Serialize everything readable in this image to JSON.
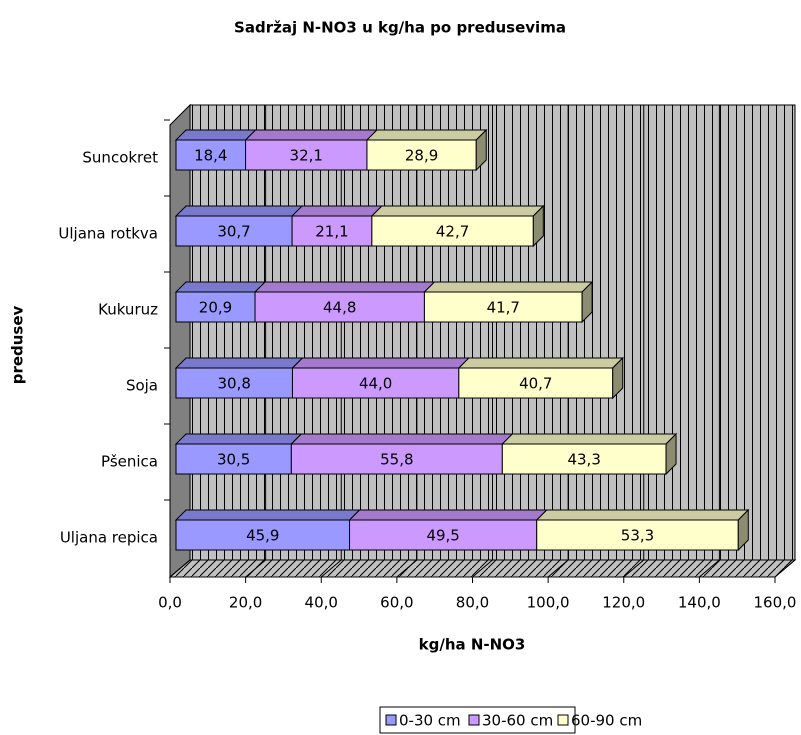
{
  "chart_data": {
    "type": "bar3d_stacked_horizontal",
    "title": "Sadržaj N-NO3 u kg/ha po predusevima",
    "x_label": "kg/ha N-NO3",
    "y_label": "predusev",
    "categories": [
      "Suncokret",
      "Uljana rotkva",
      "Kukuruz",
      "Soja",
      "Pšenica",
      "Uljana repica"
    ],
    "series": [
      {
        "name": "0-30 cm",
        "color": "#9999ff",
        "values": [
          18.4,
          30.7,
          20.9,
          30.8,
          30.5,
          45.9
        ],
        "value_labels": [
          "18,4",
          "30,7",
          "20,9",
          "30,8",
          "30,5",
          "45,9"
        ]
      },
      {
        "name": "30-60 cm",
        "color": "#cc99ff",
        "values": [
          32.1,
          21.1,
          44.8,
          44.0,
          55.8,
          49.5
        ],
        "value_labels": [
          "32,1",
          "21,1",
          "44,8",
          "44,0",
          "55,8",
          "49,5"
        ]
      },
      {
        "name": "60-90 cm",
        "color": "#ffffcc",
        "values": [
          28.9,
          42.7,
          41.7,
          40.7,
          43.3,
          53.3
        ],
        "value_labels": [
          "28,9",
          "42,7",
          "41,7",
          "40,7",
          "43,3",
          "53,3"
        ]
      }
    ],
    "xlim": [
      0,
      160
    ],
    "xticks": [
      {
        "value": 0,
        "label": "0,0"
      },
      {
        "value": 20,
        "label": "20,0"
      },
      {
        "value": 40,
        "label": "40,0"
      },
      {
        "value": 60,
        "label": "60,0"
      },
      {
        "value": 80,
        "label": "80,0"
      },
      {
        "value": 100,
        "label": "100,0"
      },
      {
        "value": 120,
        "label": "120,0"
      },
      {
        "value": 140,
        "label": "140,0"
      },
      {
        "value": 160,
        "label": "160,0"
      }
    ],
    "grid": true,
    "legend": "bottom"
  }
}
